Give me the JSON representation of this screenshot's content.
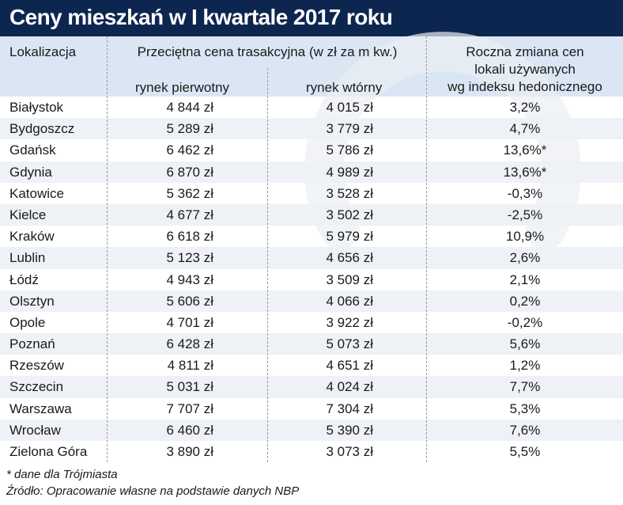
{
  "title": "Ceny mieszkań w I kwartale 2017 roku",
  "colors": {
    "title_bg": "#0d2650",
    "header_bg": "#dbe6f4",
    "row_alt_bg": "#eef1f6",
    "title_text": "#ffffff"
  },
  "headers": {
    "location": "Lokalizacja",
    "price_group": "Przeciętna cena trasakcyjna (w zł za m kw.)",
    "primary": "rynek pierwotny",
    "secondary": "rynek wtórny",
    "change_line1": "Roczna zmiana cen",
    "change_line2": "lokali używanych",
    "change_line3": "wg indeksu hedonicznego"
  },
  "rows": [
    [
      "Białystok",
      "4 844 zł",
      "4 015 zł",
      "3,2%"
    ],
    [
      "Bydgoszcz",
      "5 289 zł",
      "3 779 zł",
      "4,7%"
    ],
    [
      "Gdańsk",
      "6 462 zł",
      "5 786 zł",
      "13,6%*"
    ],
    [
      "Gdynia",
      "6 870 zł",
      "4 989 zł",
      "13,6%*"
    ],
    [
      "Katowice",
      "5 362 zł",
      "3 528 zł",
      "-0,3%"
    ],
    [
      "Kielce",
      "4 677 zł",
      "3 502 zł",
      "-2,5%"
    ],
    [
      "Kraków",
      "6 618 zł",
      "5 979 zł",
      "10,9%"
    ],
    [
      "Lublin",
      "5 123 zł",
      "4 656 zł",
      "2,6%"
    ],
    [
      "Łódź",
      "4 943 zł",
      "3 509 zł",
      "2,1%"
    ],
    [
      "Olsztyn",
      "5 606 zł",
      "4 066 zł",
      "0,2%"
    ],
    [
      "Opole",
      "4 701 zł",
      "3 922 zł",
      "-0,2%"
    ],
    [
      "Poznań",
      "6 428 zł",
      "5 073 zł",
      "5,6%"
    ],
    [
      "Rzeszów",
      "4 811 zł",
      "4 651 zł",
      "1,2%"
    ],
    [
      "Szczecin",
      "5 031 zł",
      "4 024 zł",
      "7,7%"
    ],
    [
      "Warszawa",
      "7 707 zł",
      "7 304 zł",
      "5,3%"
    ],
    [
      "Wrocław",
      "6 460 zł",
      "5 390 zł",
      "7,6%"
    ],
    [
      "Zielona Góra",
      "3 890 zł",
      "3 073 zł",
      "5,5%"
    ]
  ],
  "footnote": "* dane dla Trójmiasta",
  "source": "Źródło: Opracowanie własne na podstawie danych NBP",
  "chart_data": {
    "type": "table",
    "title": "Ceny mieszkań w I kwartale 2017 roku",
    "columns": [
      "Lokalizacja",
      "rynek pierwotny",
      "rynek wtórny",
      "Roczna zmiana cen lokali używanych wg indeksu hedonicznego"
    ],
    "categories": [
      "Białystok",
      "Bydgoszcz",
      "Gdańsk",
      "Gdynia",
      "Katowice",
      "Kielce",
      "Kraków",
      "Lublin",
      "Łódź",
      "Olsztyn",
      "Opole",
      "Poznań",
      "Rzeszów",
      "Szczecin",
      "Warszawa",
      "Wrocław",
      "Zielona Góra"
    ],
    "series": [
      {
        "name": "rynek pierwotny",
        "values": [
          4844,
          5289,
          6462,
          6870,
          5362,
          4677,
          6618,
          5123,
          4943,
          5606,
          4701,
          6428,
          4811,
          5031,
          7707,
          6460,
          3890
        ]
      },
      {
        "name": "rynek wtórny",
        "values": [
          4015,
          3779,
          5786,
          4989,
          3528,
          3502,
          5979,
          4656,
          3509,
          4066,
          3922,
          5073,
          4651,
          4024,
          7304,
          5390,
          3073
        ]
      },
      {
        "name": "Roczna zmiana cen lokali używanych wg indeksu hedonicznego",
        "values": [
          3.2,
          4.7,
          13.6,
          13.6,
          -0.3,
          -2.5,
          10.9,
          2.6,
          2.1,
          0.2,
          -0.2,
          5.6,
          1.2,
          7.7,
          5.3,
          7.6,
          5.5
        ]
      }
    ]
  }
}
